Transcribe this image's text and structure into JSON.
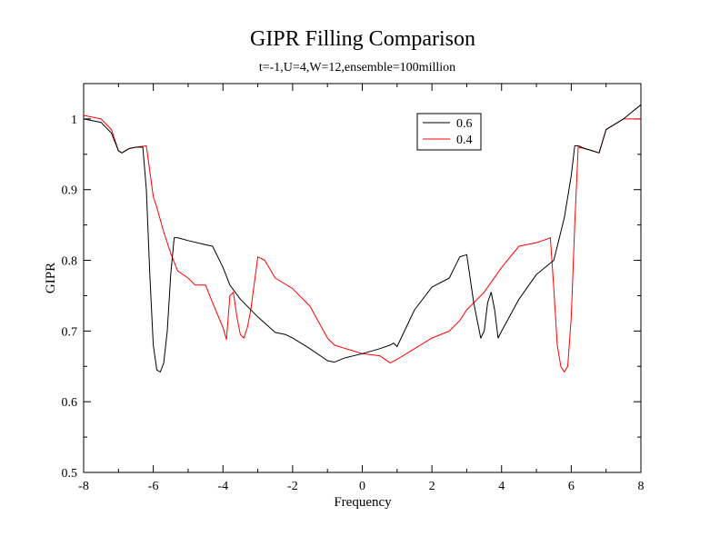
{
  "chart_data": {
    "type": "line",
    "title": "GIPR Filling Comparison",
    "subtitle": "t=-1,U=4,W=12,ensemble=100million",
    "xlabel": "Frequency",
    "ylabel": "GIPR",
    "xlim": [
      -8,
      8
    ],
    "ylim": [
      0.5,
      1.05
    ],
    "xticks": [
      -8,
      -6,
      -4,
      -2,
      0,
      2,
      4,
      6,
      8
    ],
    "xtick_labels": [
      "-8",
      "-6",
      "-4",
      "-2",
      "0",
      "2",
      "4",
      "6",
      "8"
    ],
    "yticks": [
      0.5,
      0.6,
      0.7,
      0.8,
      0.9,
      1.0
    ],
    "ytick_labels": [
      "0.5",
      "0.6",
      "0.7",
      "0.8",
      "0.9",
      "1"
    ],
    "grid": false,
    "legend_position": "top-right",
    "series": [
      {
        "name": "0.6",
        "color": "#000000",
        "x": [
          -8,
          -7.5,
          -7.2,
          -7.0,
          -6.9,
          -6.7,
          -6.5,
          -6.3,
          -6.2,
          -6.1,
          -6.0,
          -5.9,
          -5.8,
          -5.7,
          -5.6,
          -5.5,
          -5.4,
          -5.3,
          -5.0,
          -4.5,
          -4.3,
          -4.0,
          -3.8,
          -3.5,
          -3.0,
          -2.5,
          -2.2,
          -2.0,
          -1.5,
          -1.0,
          -0.8,
          -0.5,
          0.0,
          0.5,
          0.8,
          0.9,
          1.0,
          1.5,
          2.0,
          2.5,
          2.6,
          2.8,
          3.0,
          3.2,
          3.4,
          3.5,
          3.6,
          3.7,
          3.8,
          3.9,
          4.0,
          4.5,
          5.0,
          5.5,
          5.8,
          6.0,
          6.1,
          6.2,
          6.4,
          6.6,
          6.8,
          7.0,
          7.5,
          8.0
        ],
        "y": [
          1.0,
          0.995,
          0.98,
          0.955,
          0.952,
          0.958,
          0.96,
          0.96,
          0.9,
          0.78,
          0.68,
          0.645,
          0.642,
          0.655,
          0.7,
          0.78,
          0.832,
          0.832,
          0.828,
          0.822,
          0.82,
          0.79,
          0.765,
          0.745,
          0.72,
          0.698,
          0.695,
          0.69,
          0.675,
          0.658,
          0.656,
          0.662,
          0.668,
          0.675,
          0.68,
          0.683,
          0.678,
          0.73,
          0.762,
          0.775,
          0.785,
          0.805,
          0.808,
          0.74,
          0.69,
          0.7,
          0.74,
          0.755,
          0.73,
          0.69,
          0.7,
          0.745,
          0.78,
          0.8,
          0.86,
          0.92,
          0.962,
          0.962,
          0.958,
          0.955,
          0.952,
          0.985,
          1.0,
          1.02
        ]
      },
      {
        "name": "0.4",
        "color": "#ff0000",
        "x": [
          -8,
          -7.5,
          -7.2,
          -7.0,
          -6.9,
          -6.7,
          -6.5,
          -6.2,
          -6.0,
          -5.9,
          -5.7,
          -5.5,
          -5.3,
          -5.0,
          -4.8,
          -4.5,
          -4.3,
          -4.0,
          -3.9,
          -3.8,
          -3.7,
          -3.6,
          -3.5,
          -3.4,
          -3.3,
          -3.2,
          -3.0,
          -2.8,
          -2.5,
          -2.0,
          -1.5,
          -1.0,
          -0.8,
          0.0,
          0.5,
          0.8,
          1.0,
          1.5,
          2.0,
          2.5,
          2.8,
          3.0,
          3.5,
          4.0,
          4.5,
          5.0,
          5.3,
          5.4,
          5.5,
          5.6,
          5.7,
          5.8,
          5.9,
          6.0,
          6.1,
          6.2,
          6.4,
          6.6,
          6.8,
          7.0,
          7.5,
          8.0
        ],
        "y": [
          1.005,
          1.0,
          0.985,
          0.955,
          0.952,
          0.958,
          0.96,
          0.962,
          0.89,
          0.875,
          0.84,
          0.81,
          0.785,
          0.775,
          0.765,
          0.765,
          0.74,
          0.705,
          0.688,
          0.75,
          0.755,
          0.72,
          0.695,
          0.69,
          0.705,
          0.73,
          0.805,
          0.8,
          0.775,
          0.76,
          0.735,
          0.69,
          0.68,
          0.668,
          0.665,
          0.655,
          0.66,
          0.675,
          0.69,
          0.7,
          0.715,
          0.73,
          0.755,
          0.79,
          0.82,
          0.825,
          0.83,
          0.832,
          0.76,
          0.68,
          0.65,
          0.642,
          0.65,
          0.72,
          0.85,
          0.96,
          0.958,
          0.955,
          0.952,
          0.985,
          1.0,
          1.0
        ]
      }
    ]
  }
}
